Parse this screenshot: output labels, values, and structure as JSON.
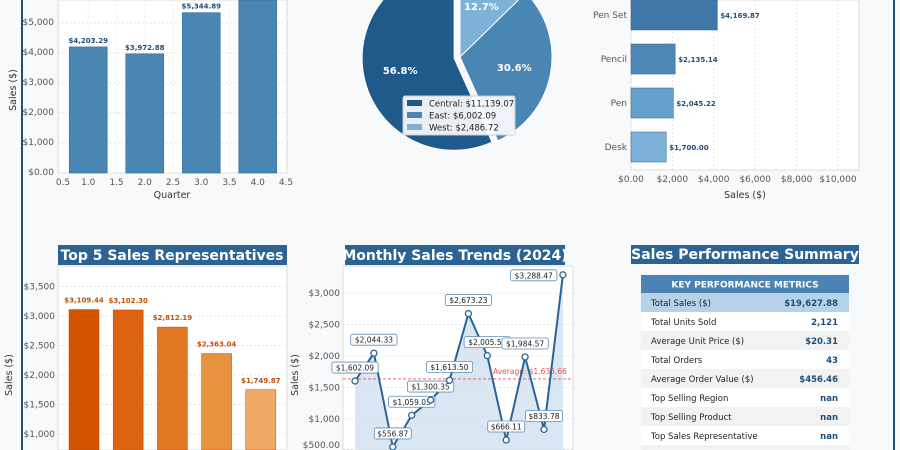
{
  "chart_data": [
    {
      "type": "bar",
      "xlabel": "Quarter",
      "ylabel": "Sales ($)",
      "x": [
        1,
        2,
        3,
        4
      ],
      "values": [
        4203.29,
        3972.88,
        5344.89,
        6106.82
      ],
      "data_labels": [
        "$4,203.29",
        "$3,972.88",
        "$5,344.89",
        ""
      ],
      "xticks": [
        "0.5",
        "1.0",
        "1.5",
        "2.0",
        "2.5",
        "3.0",
        "3.5",
        "4.0",
        "4.5"
      ],
      "yticks": [
        "$0.00",
        "$1,000",
        "$2,000",
        "$3,000",
        "$4,000",
        "$5,000"
      ],
      "xlim": [
        0.5,
        4.5
      ],
      "grid": true,
      "color": "#4a86b4"
    },
    {
      "type": "pie",
      "slices": [
        {
          "label": "Central",
          "value": 11139.07,
          "pct": "56.8%",
          "legend": "Central: $11,139.07",
          "color": "#1f5a8a"
        },
        {
          "label": "East",
          "value": 6002.09,
          "pct": "30.6%",
          "legend": "East: $6,002.09",
          "color": "#4a86b4"
        },
        {
          "label": "West",
          "value": 2486.72,
          "pct": "12.7%",
          "legend": "West: $2,486.72",
          "color": "#7fb2d8"
        }
      ],
      "legend_placement": "lower-center"
    },
    {
      "type": "bar",
      "orientation": "horizontal",
      "xlabel": "Sales ($)",
      "categories": [
        "Pen Set",
        "Pencil",
        "Pen",
        "Desk"
      ],
      "values": [
        4169.87,
        2135.14,
        2045.22,
        1700.0
      ],
      "data_labels": [
        "$4,169.87",
        "$2,135.14",
        "$2,045.22",
        "$1,700.00"
      ],
      "xticks": [
        "$0.00",
        "$2,000",
        "$4,000",
        "$6,000",
        "$8,000",
        "$10,000"
      ],
      "grid": true,
      "colors": [
        "#3f77a8",
        "#4f88b8",
        "#66a0cc",
        "#7fb2d9"
      ]
    },
    {
      "type": "bar",
      "title": "Top 5 Sales Representatives",
      "ylabel": "Sales ($)",
      "values": [
        3109.44,
        3102.3,
        2812.19,
        2363.04,
        1749.87
      ],
      "data_labels": [
        "$3,109.44",
        "$3,102.30",
        "$2,812.19",
        "$2,363.04",
        "$1,749.87"
      ],
      "yticks": [
        "$1,000",
        "$1,500",
        "$2,000",
        "$2,500",
        "$3,000",
        "$3,500"
      ],
      "grid": true,
      "colors": [
        "#d35400",
        "#dc6410",
        "#e27822",
        "#e8913e",
        "#f0aa68"
      ],
      "label_color": "#c0500a"
    },
    {
      "type": "line",
      "title": "Monthly Sales Trends (2024)",
      "ylabel": "Sales ($)",
      "values": [
        1602.09,
        2044.33,
        556.87,
        1059.03,
        1300.35,
        1613.5,
        2673.23,
        2005.55,
        666.11,
        1984.57,
        833.78,
        3288.47
      ],
      "data_labels": [
        "$1,602.09",
        "$2,044.33",
        "$556.87",
        "$1,059.03",
        "$1,300.35",
        "$1,613.50",
        "$2,673.23",
        "$2,005.55",
        "$666.11",
        "$1,984.57",
        "$833.78",
        "$3,288.47"
      ],
      "yticks": [
        "$500.00",
        "$1,000",
        "$1,500",
        "$2,000",
        "$2,500",
        "$3,000"
      ],
      "average": 1635.66,
      "average_label": "Average: $1,635.66",
      "grid": true,
      "line_color": "#2a6496",
      "fill_color": "#d3e2ee",
      "average_color": "#e05555"
    }
  ],
  "summary": {
    "title": "Sales Performance Summary",
    "table_header": "KEY PERFORMANCE METRICS",
    "rows": [
      {
        "label": "Total Sales ($)",
        "value": "$19,627.88"
      },
      {
        "label": "Total Units Sold",
        "value": "2,121"
      },
      {
        "label": "Average Unit Price ($)",
        "value": "$20.31"
      },
      {
        "label": "Total Orders",
        "value": "43"
      },
      {
        "label": "Average Order Value ($)",
        "value": "$456.46"
      },
      {
        "label": "Top Selling Region",
        "value": "nan"
      },
      {
        "label": "Top Selling Product",
        "value": "nan"
      },
      {
        "label": "Top Sales Representative",
        "value": "nan"
      }
    ]
  },
  "colors": {
    "banner": "#2c6393",
    "table_header": "#4a83b4",
    "highlight_row": "#b6d2e8",
    "value_text": "#1f4e79",
    "frame": "#1f4e79"
  }
}
